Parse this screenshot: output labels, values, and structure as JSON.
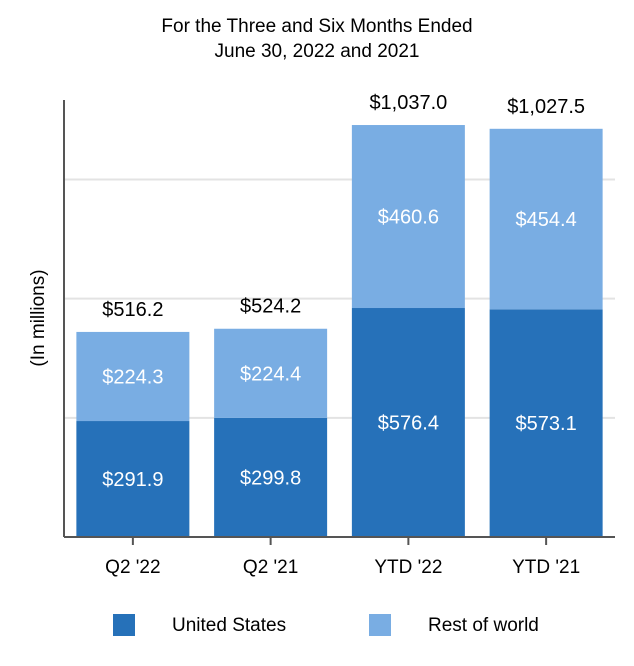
{
  "chart_data": {
    "type": "bar",
    "stacked": true,
    "title": "For the Three and Six Months Ended",
    "subtitle": "June 30, 2022 and 2021",
    "ylabel": "(In millions)",
    "categories": [
      "Q2 '22",
      "Q2 '21",
      "YTD '22",
      "YTD '21"
    ],
    "series": [
      {
        "name": "United States",
        "color": "#2671b9",
        "values": [
          291.9,
          299.8,
          576.4,
          573.1
        ],
        "labels": [
          "$291.9",
          "$299.8",
          "$576.4",
          "$573.1"
        ]
      },
      {
        "name": "Rest of world",
        "color": "#79ade3",
        "values": [
          224.3,
          224.4,
          460.6,
          454.4
        ],
        "labels": [
          "$224.3",
          "$224.4",
          "$460.6",
          "$454.4"
        ]
      }
    ],
    "totals": [
      516.2,
      524.2,
      1037.0,
      1027.5
    ],
    "total_labels": [
      "$516.2",
      "$524.2",
      "$1,037.0",
      "$1,027.5"
    ],
    "ylim": [
      0,
      1100
    ],
    "grid": true,
    "legend": "bottom"
  }
}
